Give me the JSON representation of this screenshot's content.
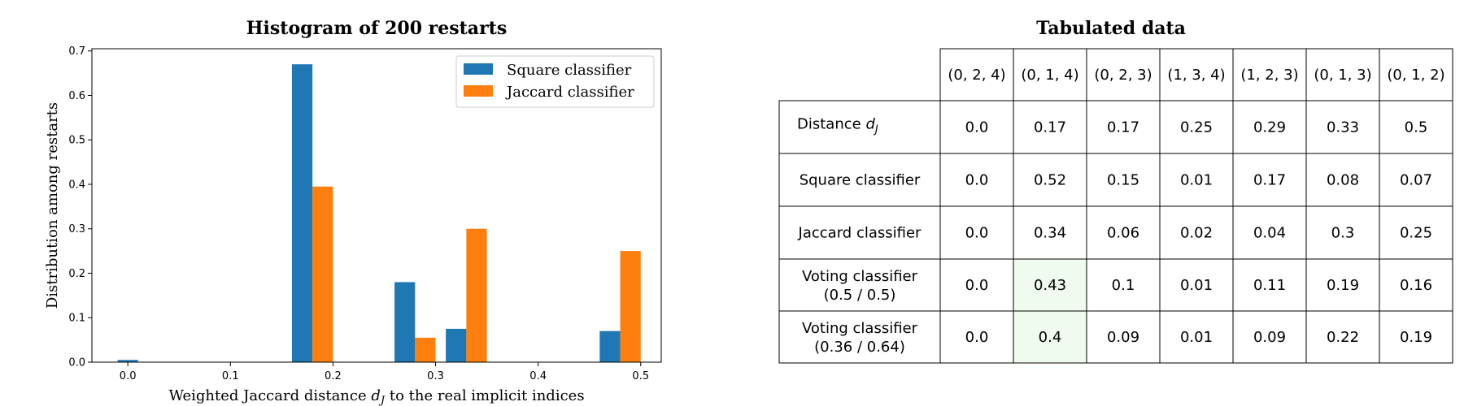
{
  "chart_data": [
    {
      "type": "bar",
      "title": "Histogram of 200 restarts",
      "xlabel_prefix": "Weighted Jaccard distance",
      "xlabel_symbol": "d",
      "xlabel_subscript": "J",
      "xlabel_suffix": "to the real implicit indices",
      "ylabel": "Distribution among restarts",
      "xlim": [
        -0.035,
        0.52
      ],
      "ylim": [
        0,
        0.705
      ],
      "x_ticks": [
        "0.0",
        "0.1",
        "0.2",
        "0.3",
        "0.4",
        "0.5"
      ],
      "y_ticks": [
        "0.0",
        "0.1",
        "0.2",
        "0.3",
        "0.4",
        "0.5",
        "0.6",
        "0.7"
      ],
      "legend_position": "top-right",
      "series": [
        {
          "name": "Square classifier",
          "color": "#1f77b4",
          "points": [
            {
              "x": 0.0,
              "y": 0.005
            },
            {
              "x": 0.17,
              "y": 0.67
            },
            {
              "x": 0.27,
              "y": 0.18
            },
            {
              "x": 0.32,
              "y": 0.075
            },
            {
              "x": 0.47,
              "y": 0.07
            }
          ]
        },
        {
          "name": "Jaccard classifier",
          "color": "#ff7f0e",
          "points": [
            {
              "x": 0.19,
              "y": 0.395
            },
            {
              "x": 0.29,
              "y": 0.055
            },
            {
              "x": 0.34,
              "y": 0.3
            },
            {
              "x": 0.49,
              "y": 0.25
            }
          ]
        }
      ]
    },
    {
      "type": "table",
      "title": "Tabulated data",
      "columns": [
        "(0, 2, 4)",
        "(0, 1, 4)",
        "(0, 2, 3)",
        "(1, 3, 4)",
        "(1, 2, 3)",
        "(0, 1, 3)",
        "(0, 1, 2)"
      ],
      "rows": [
        {
          "label_lines": [
            "Distance"
          ],
          "label_symbol": "d",
          "label_subscript": "J",
          "values": [
            "0.0",
            "0.17",
            "0.17",
            "0.25",
            "0.29",
            "0.33",
            "0.5"
          ]
        },
        {
          "label_lines": [
            "Square classifier"
          ],
          "values": [
            "0.0",
            "0.52",
            "0.15",
            "0.01",
            "0.17",
            "0.08",
            "0.07"
          ]
        },
        {
          "label_lines": [
            "Jaccard classifier"
          ],
          "values": [
            "0.0",
            "0.34",
            "0.06",
            "0.02",
            "0.04",
            "0.3",
            "0.25"
          ]
        },
        {
          "label_lines": [
            "Voting classifier",
            "(0.5 / 0.5)"
          ],
          "values": [
            "0.0",
            "0.43",
            "0.1",
            "0.01",
            "0.11",
            "0.19",
            "0.16"
          ]
        },
        {
          "label_lines": [
            "Voting classifier",
            "(0.36 / 0.64)"
          ],
          "values": [
            "0.0",
            "0.4",
            "0.09",
            "0.01",
            "0.09",
            "0.22",
            "0.19"
          ]
        }
      ],
      "highlight": {
        "column_index": 1,
        "row_indices": [
          3,
          4
        ],
        "color": "#eefbee"
      }
    }
  ]
}
